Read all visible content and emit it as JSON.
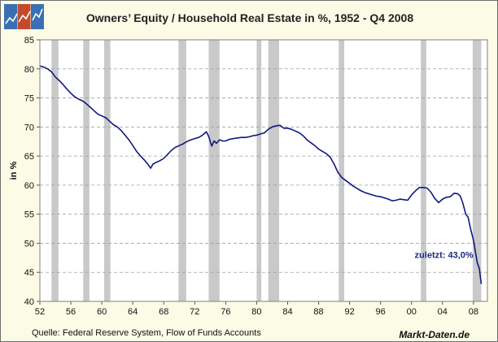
{
  "colors": {
    "background": "#fbfbe6",
    "plot_area": "#ffffff",
    "line": "#101880",
    "recession": "#c9c9c9",
    "grid": "#a0a0a0",
    "annotation": "#1f2a80"
  },
  "logo": {
    "icon": "chart-logo-icon"
  },
  "chart_data": {
    "type": "line",
    "title": "Owners’ Equity /  Household Real Estate in %, 1952 - Q4 2008",
    "ylabel": "in %",
    "xlabel": "",
    "xlim": [
      1952,
      2009.8
    ],
    "ylim": [
      40,
      85
    ],
    "grid": true,
    "xtick_values": [
      1952,
      1956,
      1960,
      1964,
      1968,
      1972,
      1976,
      1980,
      1984,
      1988,
      1992,
      1996,
      2000,
      2004,
      2008
    ],
    "xtick_labels": [
      "52",
      "56",
      "60",
      "64",
      "68",
      "72",
      "76",
      "80",
      "84",
      "88",
      "92",
      "96",
      "00",
      "04",
      "08"
    ],
    "ytick_values": [
      40,
      45,
      50,
      55,
      60,
      65,
      70,
      75,
      80,
      85
    ],
    "ytick_labels": [
      "40",
      "45",
      "50",
      "55",
      "60",
      "65",
      "70",
      "75",
      "80",
      "85"
    ],
    "recession_bands": [
      [
        1953.5,
        1954.4
      ],
      [
        1957.6,
        1958.4
      ],
      [
        1960.3,
        1961.1
      ],
      [
        1969.9,
        1970.9
      ],
      [
        1973.8,
        1975.2
      ],
      [
        1980.0,
        1980.6
      ],
      [
        1981.5,
        1982.9
      ],
      [
        1990.6,
        1991.3
      ],
      [
        2001.2,
        2001.9
      ],
      [
        2007.9,
        2009.0
      ]
    ],
    "series": [
      {
        "name": "Owners' Equity / Household Real Estate",
        "x": [
          1952.0,
          1952.5,
          1953.0,
          1953.5,
          1954.0,
          1954.5,
          1955.0,
          1955.5,
          1956.0,
          1956.5,
          1957.0,
          1957.5,
          1958.0,
          1958.5,
          1959.0,
          1959.5,
          1960.0,
          1960.5,
          1961.0,
          1961.5,
          1962.0,
          1962.5,
          1963.0,
          1963.5,
          1964.0,
          1964.5,
          1965.0,
          1965.5,
          1966.0,
          1966.3,
          1966.6,
          1967.0,
          1967.5,
          1968.0,
          1968.5,
          1969.0,
          1969.5,
          1970.0,
          1970.5,
          1971.0,
          1971.5,
          1972.0,
          1972.5,
          1973.0,
          1973.5,
          1973.8,
          1974.2,
          1974.5,
          1974.8,
          1975.2,
          1975.6,
          1976.0,
          1976.5,
          1977.0,
          1977.5,
          1978.0,
          1978.5,
          1979.0,
          1979.5,
          1980.0,
          1980.5,
          1981.0,
          1981.5,
          1982.0,
          1982.5,
          1983.0,
          1983.5,
          1984.0,
          1984.5,
          1985.0,
          1985.5,
          1986.0,
          1986.5,
          1987.0,
          1987.5,
          1988.0,
          1988.5,
          1989.0,
          1989.5,
          1990.0,
          1990.5,
          1991.0,
          1991.5,
          1992.0,
          1992.5,
          1993.0,
          1993.5,
          1994.0,
          1994.5,
          1995.0,
          1995.5,
          1996.0,
          1996.5,
          1997.0,
          1997.5,
          1998.0,
          1998.5,
          1999.0,
          1999.5,
          2000.0,
          2000.5,
          2001.0,
          2001.5,
          2002.0,
          2002.5,
          2003.0,
          2003.5,
          2004.0,
          2004.5,
          2005.0,
          2005.5,
          2006.0,
          2006.3,
          2006.6,
          2007.0,
          2007.3,
          2007.6,
          2008.0,
          2008.25,
          2008.5,
          2008.75,
          2009.0
        ],
        "values": [
          80.5,
          80.3,
          80.0,
          79.5,
          78.6,
          78.0,
          77.3,
          76.5,
          75.8,
          75.2,
          74.8,
          74.5,
          74.0,
          73.4,
          72.8,
          72.2,
          71.9,
          71.6,
          71.0,
          70.4,
          70.0,
          69.4,
          68.6,
          67.8,
          66.8,
          65.8,
          65.0,
          64.3,
          63.5,
          62.9,
          63.6,
          63.9,
          64.2,
          64.6,
          65.3,
          66.0,
          66.5,
          66.8,
          67.1,
          67.5,
          67.8,
          68.0,
          68.2,
          68.6,
          69.2,
          68.4,
          66.7,
          67.6,
          67.2,
          67.8,
          67.6,
          67.6,
          67.9,
          68.0,
          68.1,
          68.2,
          68.2,
          68.3,
          68.5,
          68.6,
          68.8,
          69.0,
          69.6,
          70.0,
          70.2,
          70.3,
          69.8,
          69.8,
          69.6,
          69.3,
          69.0,
          68.5,
          67.8,
          67.3,
          66.8,
          66.2,
          65.8,
          65.4,
          64.8,
          63.6,
          62.2,
          61.3,
          60.8,
          60.3,
          59.8,
          59.4,
          59.0,
          58.7,
          58.5,
          58.3,
          58.1,
          58.0,
          57.8,
          57.6,
          57.3,
          57.4,
          57.6,
          57.5,
          57.4,
          58.3,
          59.0,
          59.6,
          59.6,
          59.5,
          58.8,
          57.7,
          57.0,
          57.6,
          57.9,
          58.0,
          58.6,
          58.5,
          58.1,
          57.0,
          55.0,
          54.5,
          52.6,
          50.5,
          48.5,
          46.6,
          45.7,
          43.0
        ]
      }
    ],
    "annotation": {
      "text": "zuletzt: 43,0%",
      "x": 2000.4,
      "y": 47.5
    }
  },
  "footer": {
    "source": "Quelle: Federal Reserve System, Flow of Funds Accounts",
    "brand": "Markt-Daten.de"
  }
}
